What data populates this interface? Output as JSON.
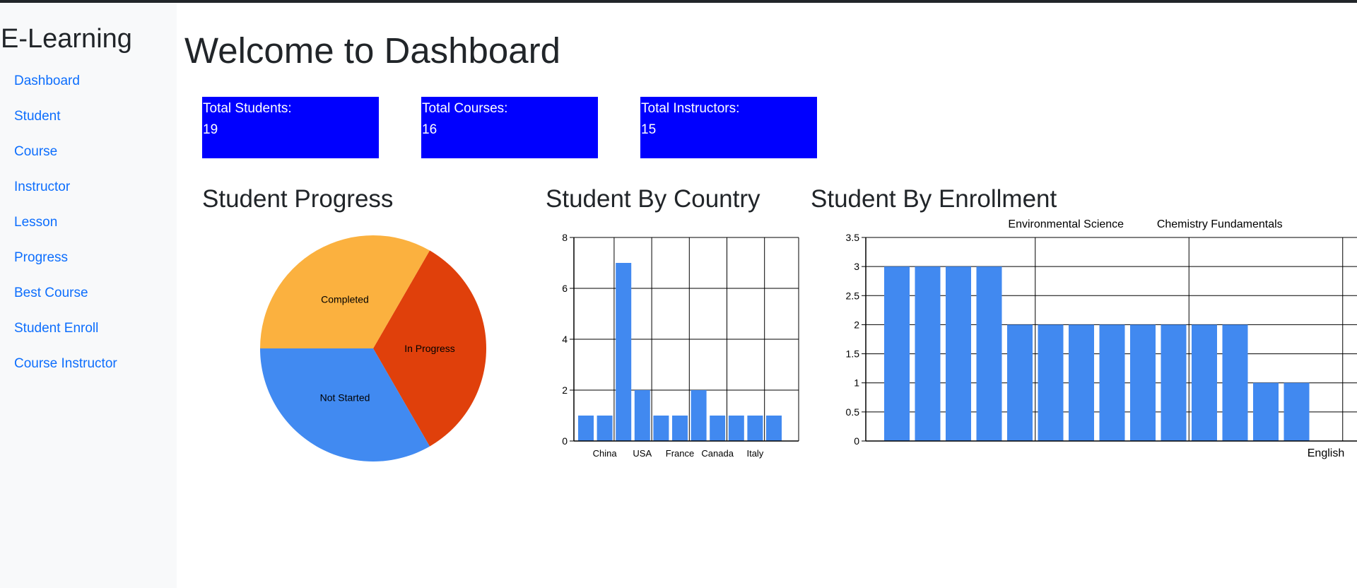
{
  "app": {
    "brand": "E-Learning"
  },
  "sidebar": {
    "items": [
      {
        "label": "Dashboard"
      },
      {
        "label": "Student"
      },
      {
        "label": "Course"
      },
      {
        "label": "Instructor"
      },
      {
        "label": "Lesson"
      },
      {
        "label": "Progress"
      },
      {
        "label": "Best Course"
      },
      {
        "label": "Student Enroll"
      },
      {
        "label": "Course Instructor"
      }
    ]
  },
  "main": {
    "title": "Welcome to Dashboard",
    "stats": [
      {
        "label": "Total Students:",
        "value": "19"
      },
      {
        "label": "Total Courses:",
        "value": "16"
      },
      {
        "label": "Total Instructors:",
        "value": "15"
      }
    ],
    "sections": {
      "progress": "Student Progress",
      "country": "Student By Country",
      "enrollment": "Student By Enrollment"
    }
  },
  "colors": {
    "link": "#0d6efd",
    "card": "#0000ff",
    "bar": "#4189f0",
    "pie_in_progress": "#e0400b",
    "pie_not_started": "#418af1",
    "pie_completed": "#fbb13f"
  },
  "chart_data": [
    {
      "type": "pie",
      "labels": [
        "In Progress",
        "Not Started",
        "Completed"
      ],
      "values": [
        1,
        1,
        1
      ],
      "title": ""
    },
    {
      "type": "bar",
      "categories": [
        "",
        "China",
        "",
        "USA",
        "",
        "France",
        "",
        "Canada",
        "",
        "Italy",
        ""
      ],
      "values": [
        1,
        1,
        7,
        2,
        1,
        1,
        2,
        1,
        1,
        1,
        1
      ],
      "ylim": [
        0,
        8
      ],
      "yticks": [
        0,
        2,
        4,
        6,
        8
      ],
      "grid": true
    },
    {
      "type": "bar",
      "categories": [
        "",
        "",
        "",
        "",
        "",
        "Environmental Science",
        "",
        "",
        "",
        "",
        "Chemistry Fundamentals",
        "",
        "",
        "",
        ""
      ],
      "edge_labels": [
        "English"
      ],
      "values": [
        3,
        3,
        3,
        3,
        2,
        2,
        2,
        2,
        2,
        2,
        2,
        2,
        1,
        1,
        0
      ],
      "ylim": [
        0,
        3.5
      ],
      "yticks": [
        0,
        0.5,
        1,
        1.5,
        2,
        2.5,
        3,
        3.5
      ],
      "grid": true
    }
  ]
}
